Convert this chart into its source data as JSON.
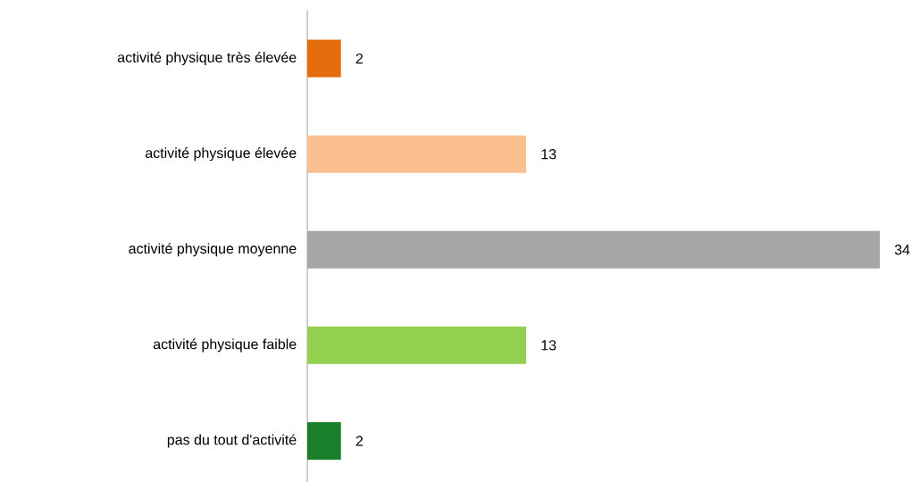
{
  "chart_data": {
    "type": "bar",
    "orientation": "horizontal",
    "categories": [
      "activité physique très élevée",
      "activité physique élevée",
      "activité physique moyenne",
      "activité physique faible",
      "pas du tout d'activité"
    ],
    "values": [
      2,
      13,
      34,
      13,
      2
    ],
    "colors": [
      "#e46c0a",
      "#fac090",
      "#a6a6a6",
      "#92d050",
      "#1a7f2a"
    ],
    "data_labels": true
  }
}
